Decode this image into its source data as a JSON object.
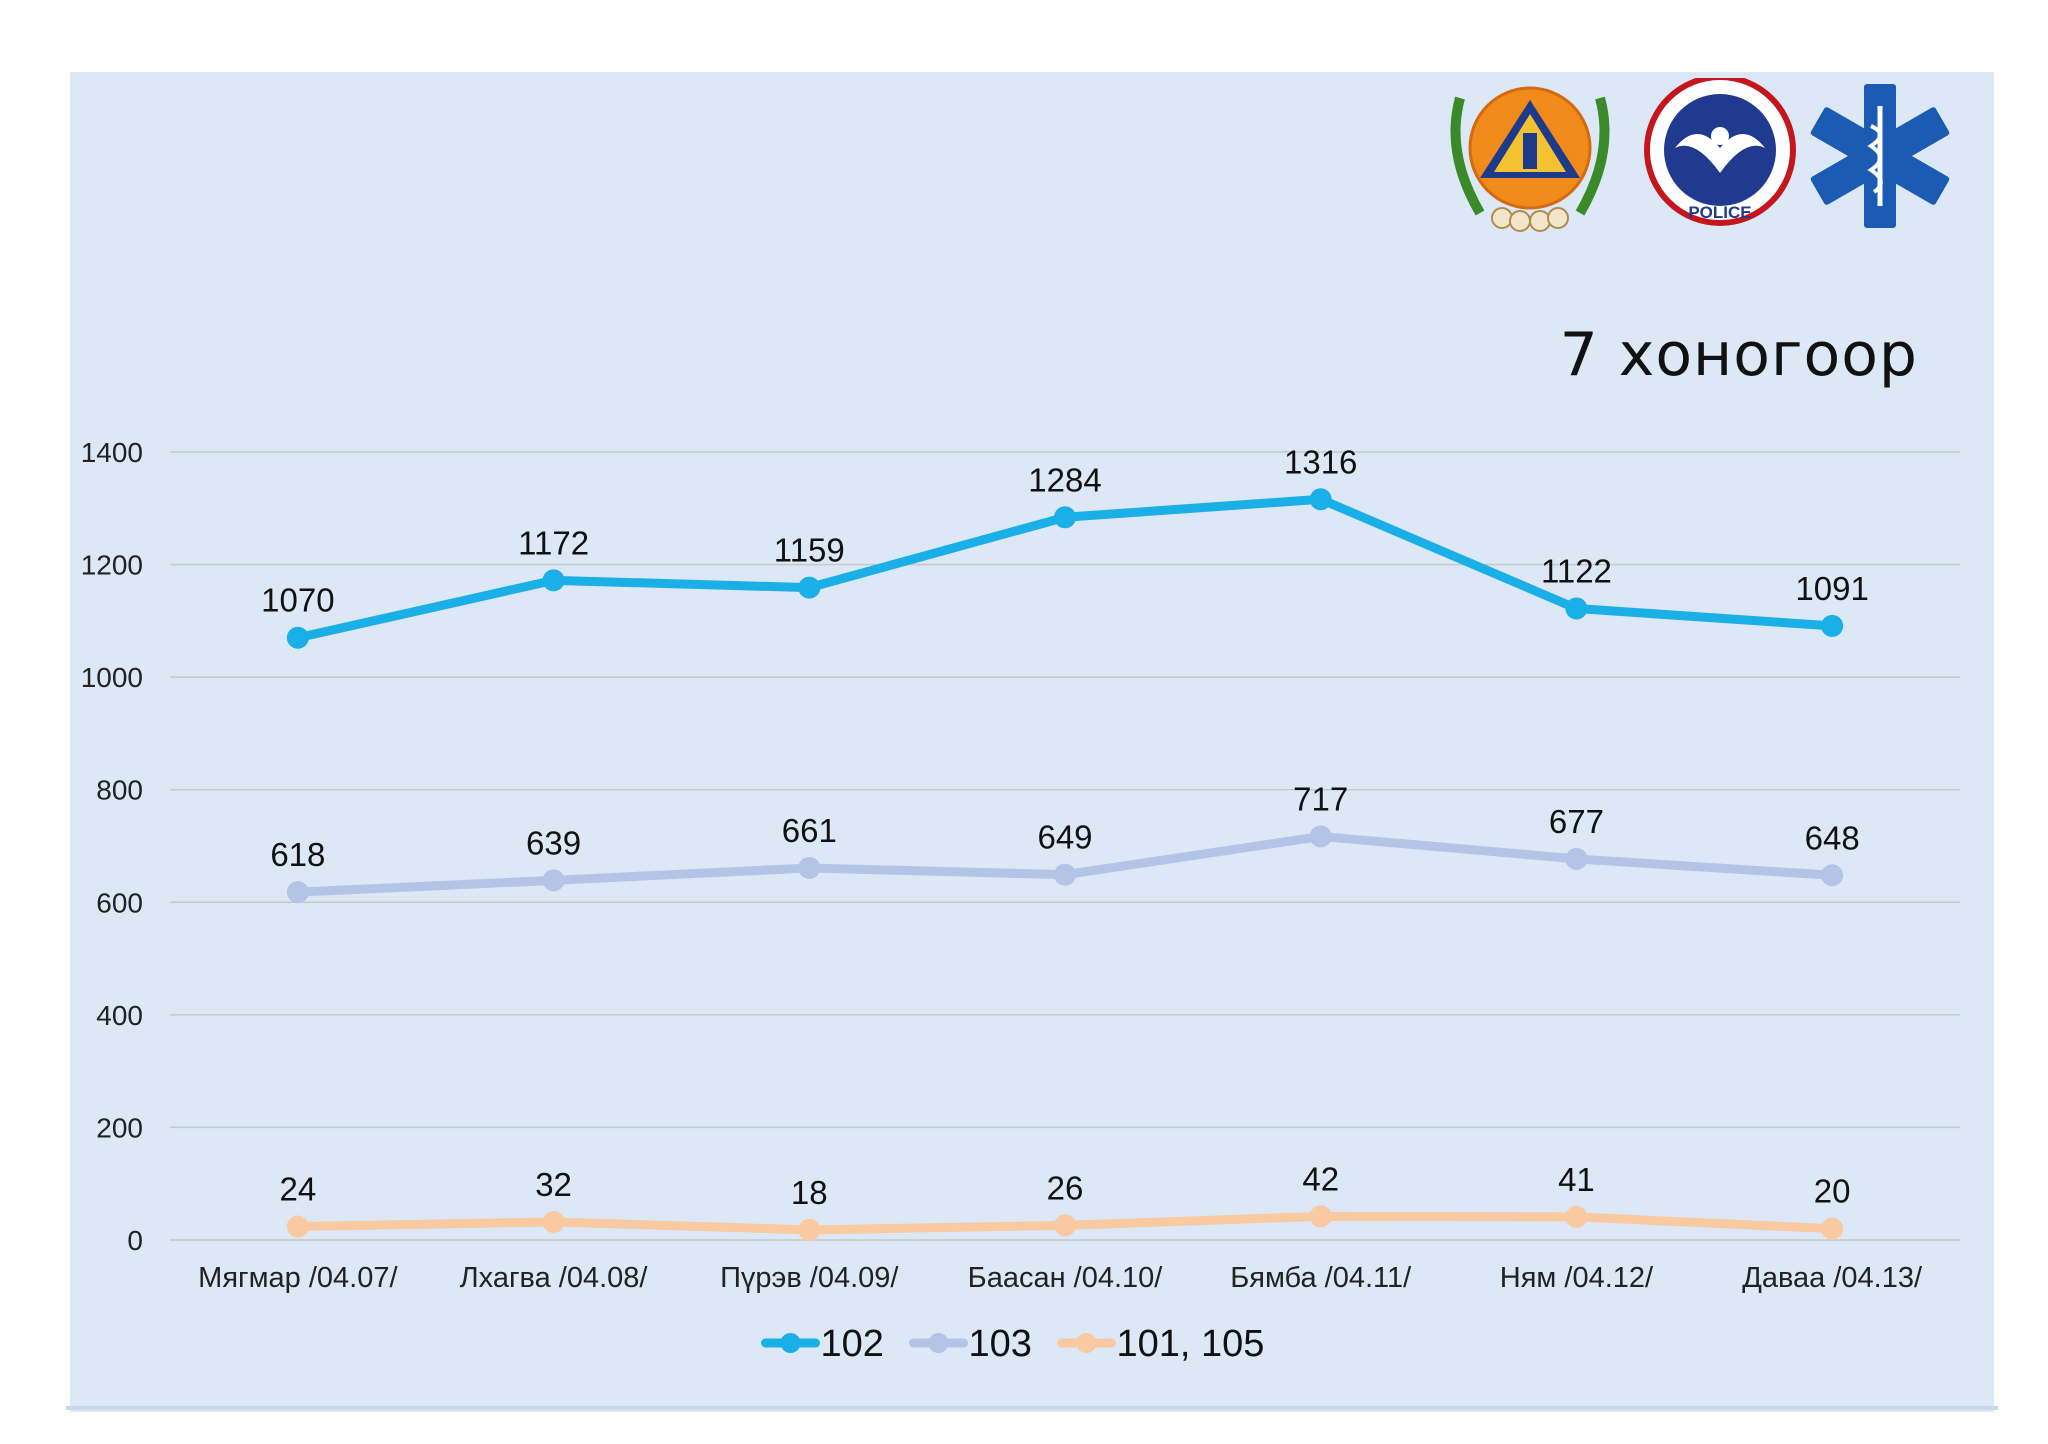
{
  "period_title": "7 хоногоор",
  "logos": [
    {
      "name": "emergency-management-emblem-icon"
    },
    {
      "name": "police-badge-icon",
      "text": "POLICE"
    },
    {
      "name": "star-of-life-icon"
    }
  ],
  "chart_data": {
    "type": "line",
    "categories": [
      "Мягмар /04.07/",
      "Лхагва /04.08/",
      "Пүрэв /04.09/",
      "Баасан /04.10/",
      "Бямба /04.11/",
      "Ням /04.12/",
      "Даваа /04.13/"
    ],
    "series": [
      {
        "name": "102",
        "values": [
          1070,
          1172,
          1159,
          1284,
          1316,
          1122,
          1091
        ],
        "color": "#1aafe6"
      },
      {
        "name": "103",
        "values": [
          618,
          639,
          661,
          649,
          717,
          677,
          648
        ],
        "color": "#b4c4e6"
      },
      {
        "name": "101, 105",
        "values": [
          24,
          32,
          18,
          26,
          42,
          41,
          20
        ],
        "color": "#f9c9a1"
      }
    ],
    "ylim": [
      0,
      1400
    ],
    "yticks": [
      0,
      200,
      400,
      600,
      800,
      1000,
      1200,
      1400
    ],
    "grid": true,
    "legend_position": "bottom"
  }
}
